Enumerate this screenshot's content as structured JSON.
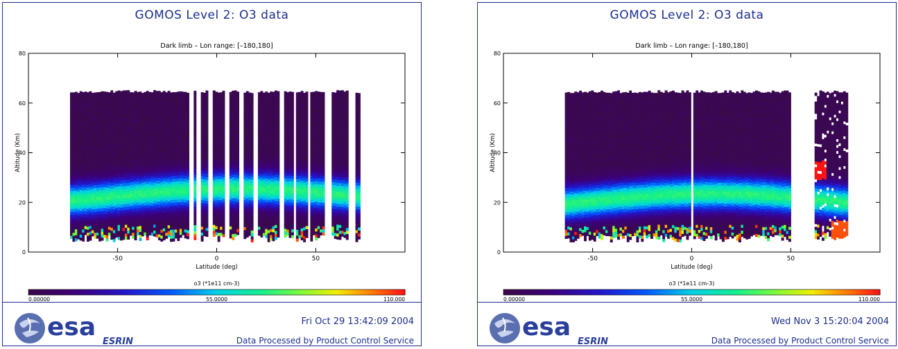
{
  "chart_data": [
    {
      "type": "heatmap",
      "title": "GOMOS Level 2: O3 data",
      "subtitle": "Dark limb    – Lon range: [–180,180]",
      "xlabel": "Latitude (deg)",
      "ylabel": "Altitude (Km)",
      "xticks": [
        -50,
        0,
        50
      ],
      "yticks": [
        0,
        20,
        40,
        60,
        80
      ],
      "xlim": [
        -95,
        95
      ],
      "ylim": [
        0,
        80
      ],
      "colorbar": {
        "label": "o3 (*1e11 cm-3)",
        "min": "0.00000",
        "mid": "55.0000",
        "max": "110.000"
      },
      "data_lat_range": [
        -74,
        74
      ],
      "data_alt_top": 64,
      "ozone_peak_alt": 22,
      "timestamp": "Fri Oct 29 13:42:09 2004",
      "footer": "Data Processed by Product Control Service"
    },
    {
      "type": "heatmap",
      "title": "GOMOS Level 2: O3 data",
      "subtitle": "Dark limb    – Lon range: [–180,180]",
      "xlabel": "Latitude (deg)",
      "ylabel": "Altitude (Km)",
      "xticks": [
        -50,
        0,
        50
      ],
      "yticks": [
        0,
        20,
        40,
        60,
        80
      ],
      "xlim": [
        -95,
        95
      ],
      "ylim": [
        0,
        80
      ],
      "colorbar": {
        "label": "o3 (*1e11 cm-3)",
        "min": "0.00000",
        "mid": "55.0000",
        "max": "110.000"
      },
      "data_lat_range": [
        -64,
        78
      ],
      "data_alt_top": 64,
      "ozone_peak_alt": 20,
      "timestamp": "Wed Nov  3 15:20:04 2004",
      "footer": "Data Processed by Product Control Service"
    }
  ],
  "logo": {
    "wordmark": "esa",
    "site": "ESRIN"
  },
  "colors": {
    "frame": "#1a2d8c",
    "background": "#ffffff",
    "low": "#3a0a4a",
    "high": "#ff1a1a"
  }
}
